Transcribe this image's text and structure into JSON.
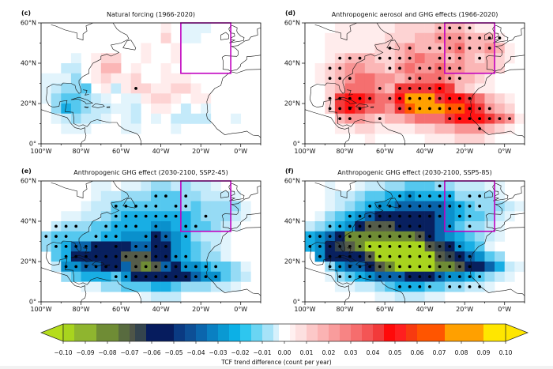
{
  "figure": {
    "x_ticks": [
      "100°W",
      "80°W",
      "60°W",
      "40°W",
      "20°W",
      "0°W"
    ],
    "x_tick_lons": [
      -100,
      -80,
      -60,
      -40,
      -20,
      0
    ],
    "y_ticks": [
      "0°",
      "20°N",
      "40°N",
      "60°N"
    ],
    "y_tick_lats": [
      0,
      20,
      40,
      60
    ],
    "lon_range": [
      -100,
      10
    ],
    "lat_range": [
      0,
      60
    ],
    "box_region": {
      "lon": [
        -30,
        -5
      ],
      "lat": [
        35,
        60
      ],
      "color": "#c000c0"
    },
    "level_colors": {
      "a": "#ffecec",
      "b": "#fdd3d3",
      "c": "#fbb6b6",
      "d": "#f89494",
      "e": "#f56f6f",
      "f": "#f23b3b",
      "g": "#ff1414",
      "h": "#ff5a00",
      "i": "#ffa000",
      "j": "#ffe600",
      "A": "#e2f4fc",
      "B": "#c4eafa",
      "C": "#96dbf5",
      "D": "#55c8ef",
      "E": "#18aee4",
      "F": "#0a90cc",
      "G": "#0a64aa",
      "H": "#08205f",
      "I": "#34444e",
      "J": "#555c4a",
      "K": "#6f8c35",
      "L": "#a8d41e"
    }
  },
  "panels": [
    {
      "label": "(c)",
      "title": "Natural forcing (1966-2020)",
      "grid": [
        "............a.AAA.....",
        "............b.AA......",
        "..........a..a........",
        "...A.abb..a..a........",
        "..BB.acc.a..a.........",
        "AAAC.abaab..aaa.......",
        "ABCCD.aBabbaabba......",
        "ACDDCBA.AAabba.aa.....",
        ".CEDCBBAAB.aa.B.A.....",
        ".ABCBBA.AB.A.BBBB..A..",
        "..AAA...AA...A........",
        "......................"
      ],
      "dots": [
        [],
        [],
        [],
        [],
        [],
        [],
        [
          9
        ],
        [],
        [],
        [],
        [],
        []
      ]
    },
    {
      "label": "(d)",
      "title": "Anthropogenic aerosol and GHG effects (1966-2020)",
      "grid": [
        "...aaaaaabbbbcccbaa...",
        "..aaaaaabbbccdddccca..",
        "..aaaaabbcdcccdeccdca.",
        "..abcccbbcdeddcdcbcba.",
        ".abcddccbdeddeddcccb..",
        ".abcdeeddcdeeedccba...",
        "..bceeedcffffgfcbaa...",
        "..bfggfeegiiifggfecba.",
        "..bfgfeedfhiiihhgfdcb.",
        "...cddcbccdeeefgggfeda",
        "...aabbaaaabbccdddcba.",
        "......a.....aaabbba..."
      ],
      "dots": [
        [
          13,
          14,
          15,
          16
        ],
        [
          13,
          14,
          15,
          16,
          17,
          18,
          19
        ],
        [
          8,
          10,
          12,
          13,
          14,
          15,
          16,
          17,
          18
        ],
        [
          3,
          4,
          5,
          7,
          8,
          9,
          10,
          13,
          14,
          15,
          17
        ],
        [
          2,
          3,
          8,
          9,
          11,
          12,
          13,
          14,
          15
        ],
        [
          2,
          3,
          4,
          10,
          11,
          13,
          14,
          15
        ],
        [
          7,
          9,
          10,
          11,
          12,
          13
        ],
        [
          2,
          3,
          4,
          5,
          6,
          8,
          9,
          10,
          11,
          12,
          13,
          14,
          15,
          16
        ],
        [
          2,
          3,
          4,
          5,
          9,
          10,
          11,
          12,
          13,
          14,
          15,
          16,
          17,
          18
        ],
        [
          3,
          4,
          7,
          14,
          15,
          16,
          17,
          18,
          19,
          20
        ],
        [
          17
        ],
        []
      ]
    },
    {
      "label": "(e)",
      "title": "Anthropogenic GHG effect (2030-2100, SSP2-45)",
      "grid": [
        ".....AA.AABCCBCBBA....",
        ".....ABBCCCDDDCCBBBA..",
        "....ABBDDDDDDDCDCCCCA.",
        "..AABBCDEEEEEEEDCCCBA.",
        ".BCCCDDEEEEFFEEDDCBA..",
        "CDDDDDEEFFFHGFECBBA...",
        "CDEGGHHHHGGHHFEDCBA...",
        ".DEHHHHHJJJHHFEDCCA...",
        ".BFFGGHHGJKJGHFFEDDCA.",
        "..CDEEEDFHHHHHHGFFDCB.",
        "....AACCDDDEEDCCCBBA..",
        "..........ABBB........"
      ],
      "dots": [
        [],
        [
          11,
          12,
          14
        ],
        [
          7,
          8,
          9,
          10,
          11,
          13,
          14
        ],
        [
          7,
          8,
          9,
          10,
          11,
          12,
          13,
          16
        ],
        [
          1,
          2,
          3,
          6,
          7,
          8,
          9,
          11,
          14,
          15
        ],
        [
          0,
          1,
          2,
          5,
          6,
          7,
          10,
          11,
          12,
          14
        ],
        [
          1,
          2,
          3,
          4,
          5,
          7,
          9,
          10,
          11,
          12
        ],
        [
          2,
          3,
          4,
          5,
          6,
          7,
          8,
          9,
          10,
          11,
          12,
          13,
          14
        ],
        [
          2,
          3,
          4,
          5,
          6,
          7,
          9,
          10,
          11,
          12,
          13,
          14,
          15,
          16,
          17
        ],
        [
          7,
          8,
          9,
          10,
          11,
          12,
          13,
          14,
          15,
          16,
          17
        ],
        [],
        []
      ]
    },
    {
      "label": "(f)",
      "title": "Anthropogenic GHG effect (2030-2100, SSP5-85)",
      "grid": [
        "..A..ABBCCDDDCCBBBAA..",
        "..ABBCDDEEFEEEECCCCA..",
        "..ABCDEFFGGGGGFEDCCCBA",
        ".ACDEFGHHHHHHGFEDDCBA.",
        "BCDEFHJJJHHHHGFDCCBA..",
        "EFGHKKKKKKKJHGFEDCBA..",
        "EFHIJKLLLLLLJIHFEDA...",
        ".FHHHHJLLLLLLJIHGFDC..",
        "..CFGGHJKLLLLKKJHHGEBA",
        "..ACDEFGGGHHHGFFEDCBA.",
        "...AABBCDEEEDDCCBBA...",
        ".......AABBBAA........"
      ],
      "dots": [
        [
          13
        ],
        [
          9,
          10,
          11,
          12,
          13,
          14,
          16,
          17
        ],
        [
          6,
          7,
          8,
          9,
          10,
          11,
          12,
          13,
          14,
          15,
          16,
          17
        ],
        [
          4,
          5,
          6,
          7,
          8,
          9,
          10,
          11,
          12,
          13,
          15,
          16
        ],
        [
          2,
          3,
          4,
          5,
          6,
          7,
          8,
          9,
          10,
          11,
          14,
          16
        ],
        [
          0,
          1,
          2,
          3,
          4,
          5,
          6,
          7,
          8,
          9,
          10,
          11,
          12
        ],
        [
          0,
          1,
          2,
          3,
          4,
          5,
          6,
          7,
          8,
          9,
          10,
          11,
          12,
          13,
          14,
          15
        ],
        [
          1,
          2,
          3,
          4,
          5,
          6,
          7,
          8,
          9,
          10,
          11,
          12,
          13,
          14,
          15,
          16
        ],
        [
          2,
          3,
          4,
          5,
          6,
          7,
          8,
          9,
          10,
          11,
          12,
          13,
          14,
          15,
          16
        ],
        [
          3,
          4,
          5,
          6,
          7,
          8,
          9,
          10,
          11,
          12,
          13,
          14,
          15,
          16,
          17
        ],
        [
          9,
          10,
          11,
          12,
          14,
          15,
          16,
          17
        ],
        []
      ]
    }
  ],
  "colorbar": {
    "title": "TCF trend difference (count per year)",
    "range": [
      -0.1,
      0.1
    ],
    "extend": "both",
    "ticks": [
      "−0.10",
      "−0.09",
      "−0.08",
      "−0.07",
      "−0.06",
      "−0.05",
      "−0.04",
      "−0.03",
      "−0.02",
      "−0.01",
      "0.00",
      "0.01",
      "0.02",
      "0.03",
      "0.04",
      "0.05",
      "0.06",
      "0.07",
      "0.08",
      "0.09",
      "0.10"
    ],
    "segments": [
      [
        -0.1,
        -0.095,
        "#a8d41e"
      ],
      [
        -0.095,
        -0.085,
        "#8fb52f"
      ],
      [
        -0.085,
        -0.075,
        "#6f8c35"
      ],
      [
        -0.075,
        -0.07,
        "#586b3f"
      ],
      [
        -0.07,
        -0.0675,
        "#4e5548"
      ],
      [
        -0.0675,
        -0.0625,
        "#34444e"
      ],
      [
        -0.0625,
        -0.05,
        "#061c5e"
      ],
      [
        -0.05,
        -0.045,
        "#0a3a82"
      ],
      [
        -0.045,
        -0.04,
        "#0d4f96"
      ],
      [
        -0.04,
        -0.035,
        "#0b66ad"
      ],
      [
        -0.035,
        -0.03,
        "#0a80c2"
      ],
      [
        -0.03,
        -0.025,
        "#0a99d2"
      ],
      [
        -0.025,
        -0.02,
        "#0cb0e6"
      ],
      [
        -0.02,
        -0.015,
        "#2ec6ef"
      ],
      [
        -0.015,
        -0.01,
        "#6ad5f3"
      ],
      [
        -0.01,
        -0.005,
        "#a6e3f8"
      ],
      [
        -0.005,
        -0.0025,
        "#d6f1fc"
      ],
      [
        -0.0025,
        0.0025,
        "#ffffff"
      ],
      [
        0.0025,
        0.005,
        "#fff0f0"
      ],
      [
        0.005,
        0.01,
        "#fde0e0"
      ],
      [
        0.01,
        0.015,
        "#fcc8c8"
      ],
      [
        0.015,
        0.02,
        "#fbb3b3"
      ],
      [
        0.02,
        0.025,
        "#f99c9c"
      ],
      [
        0.025,
        0.03,
        "#f78484"
      ],
      [
        0.03,
        0.035,
        "#f66d6d"
      ],
      [
        0.035,
        0.04,
        "#f45555"
      ],
      [
        0.04,
        0.045,
        "#f23a3a"
      ],
      [
        0.045,
        0.05,
        "#ff0a0a"
      ],
      [
        0.05,
        0.055,
        "#ff1f1f"
      ],
      [
        0.055,
        0.06,
        "#f73a10"
      ],
      [
        0.06,
        0.0725,
        "#ff5500"
      ],
      [
        0.0725,
        0.09,
        "#ffa000"
      ],
      [
        0.09,
        0.1,
        "#ffe600"
      ]
    ],
    "under_color": "#b5dd1d",
    "over_color": "#ffe600"
  }
}
